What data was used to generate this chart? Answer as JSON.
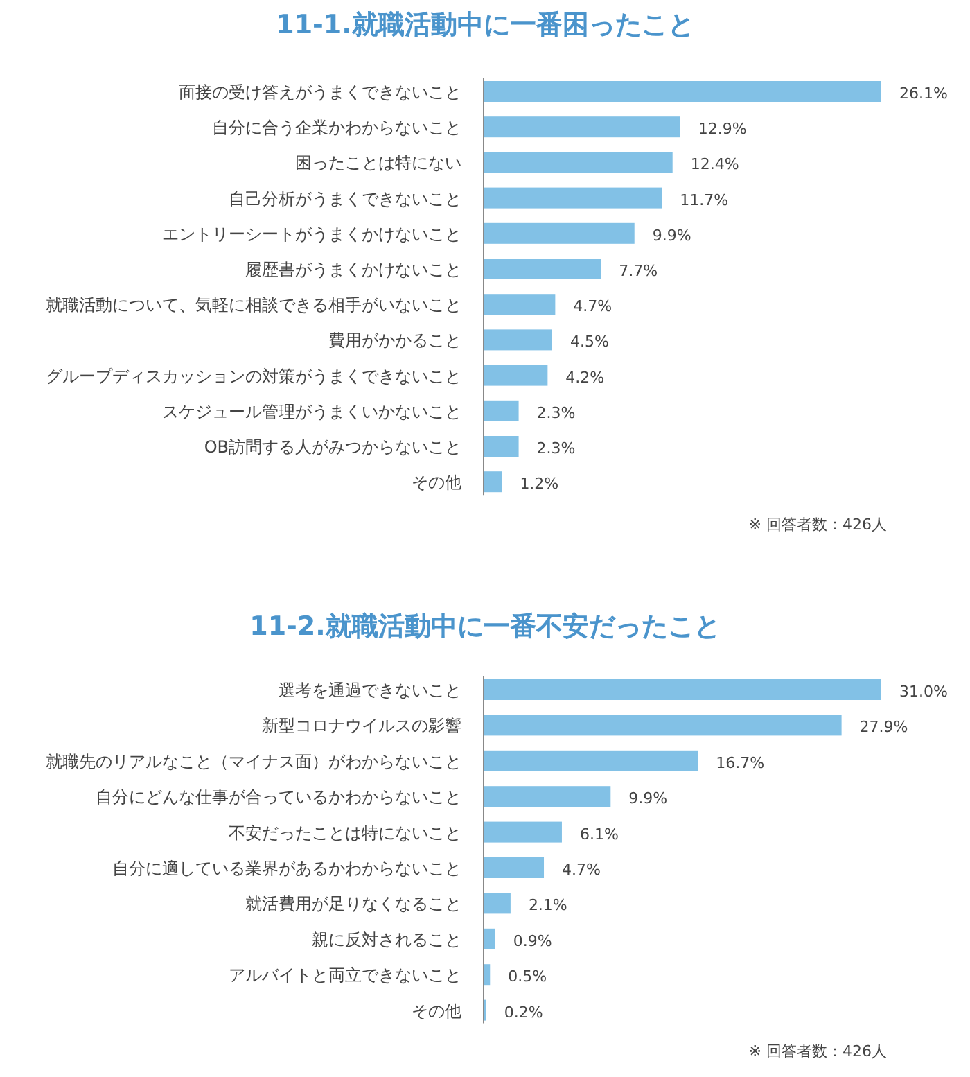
{
  "chart_data": [
    {
      "type": "bar",
      "orientation": "horizontal",
      "title": "11-1.就職活動中に一番困ったこと",
      "categories": [
        "面接の受け答えがうまくできないこと",
        "自分に合う企業かわからないこと",
        "困ったことは特にない",
        "自己分析がうまくできないこと",
        "エントリーシートがうまくかけないこと",
        "履歴書がうまくかけないこと",
        "就職活動について、気軽に相談できる相手がいないこと",
        "費用がかかること",
        "グループディスカッションの対策がうまくできないこと",
        "スケジュール管理がうまくいかないこと",
        "OB訪問する人がみつからないこと",
        "その他"
      ],
      "values": [
        26.1,
        12.9,
        12.4,
        11.7,
        9.9,
        7.7,
        4.7,
        4.5,
        4.2,
        2.3,
        2.3,
        1.2
      ],
      "value_labels": [
        "26.1%",
        "12.9%",
        "12.4%",
        "11.7%",
        "9.9%",
        "7.7%",
        "4.7%",
        "4.5%",
        "4.2%",
        "2.3%",
        "2.3%",
        "1.2%"
      ],
      "color": "#82c1e6",
      "grid": false,
      "annotations": [
        "※ 回答者数：426人"
      ]
    },
    {
      "type": "bar",
      "orientation": "horizontal",
      "title": "11-2.就職活動中に一番不安だったこと",
      "categories": [
        "選考を通過できないこと",
        "新型コロナウイルスの影響",
        "就職先のリアルなこと（マイナス面）がわからないこと",
        "自分にどんな仕事が合っているかわからないこと",
        "不安だったことは特にないこと",
        "自分に適している業界があるかわからないこと",
        "就活費用が足りなくなること",
        "親に反対されること",
        "アルバイトと両立できないこと",
        "その他"
      ],
      "values": [
        31.0,
        27.9,
        16.7,
        9.9,
        6.1,
        4.7,
        2.1,
        0.9,
        0.5,
        0.2
      ],
      "value_labels": [
        "31.0%",
        "27.9%",
        "16.7%",
        "9.9%",
        "6.1%",
        "4.7%",
        "2.1%",
        "0.9%",
        "0.5%",
        "0.2%"
      ],
      "color": "#82c1e6",
      "grid": false,
      "annotations": [
        "※ 回答者数：426人"
      ]
    }
  ]
}
